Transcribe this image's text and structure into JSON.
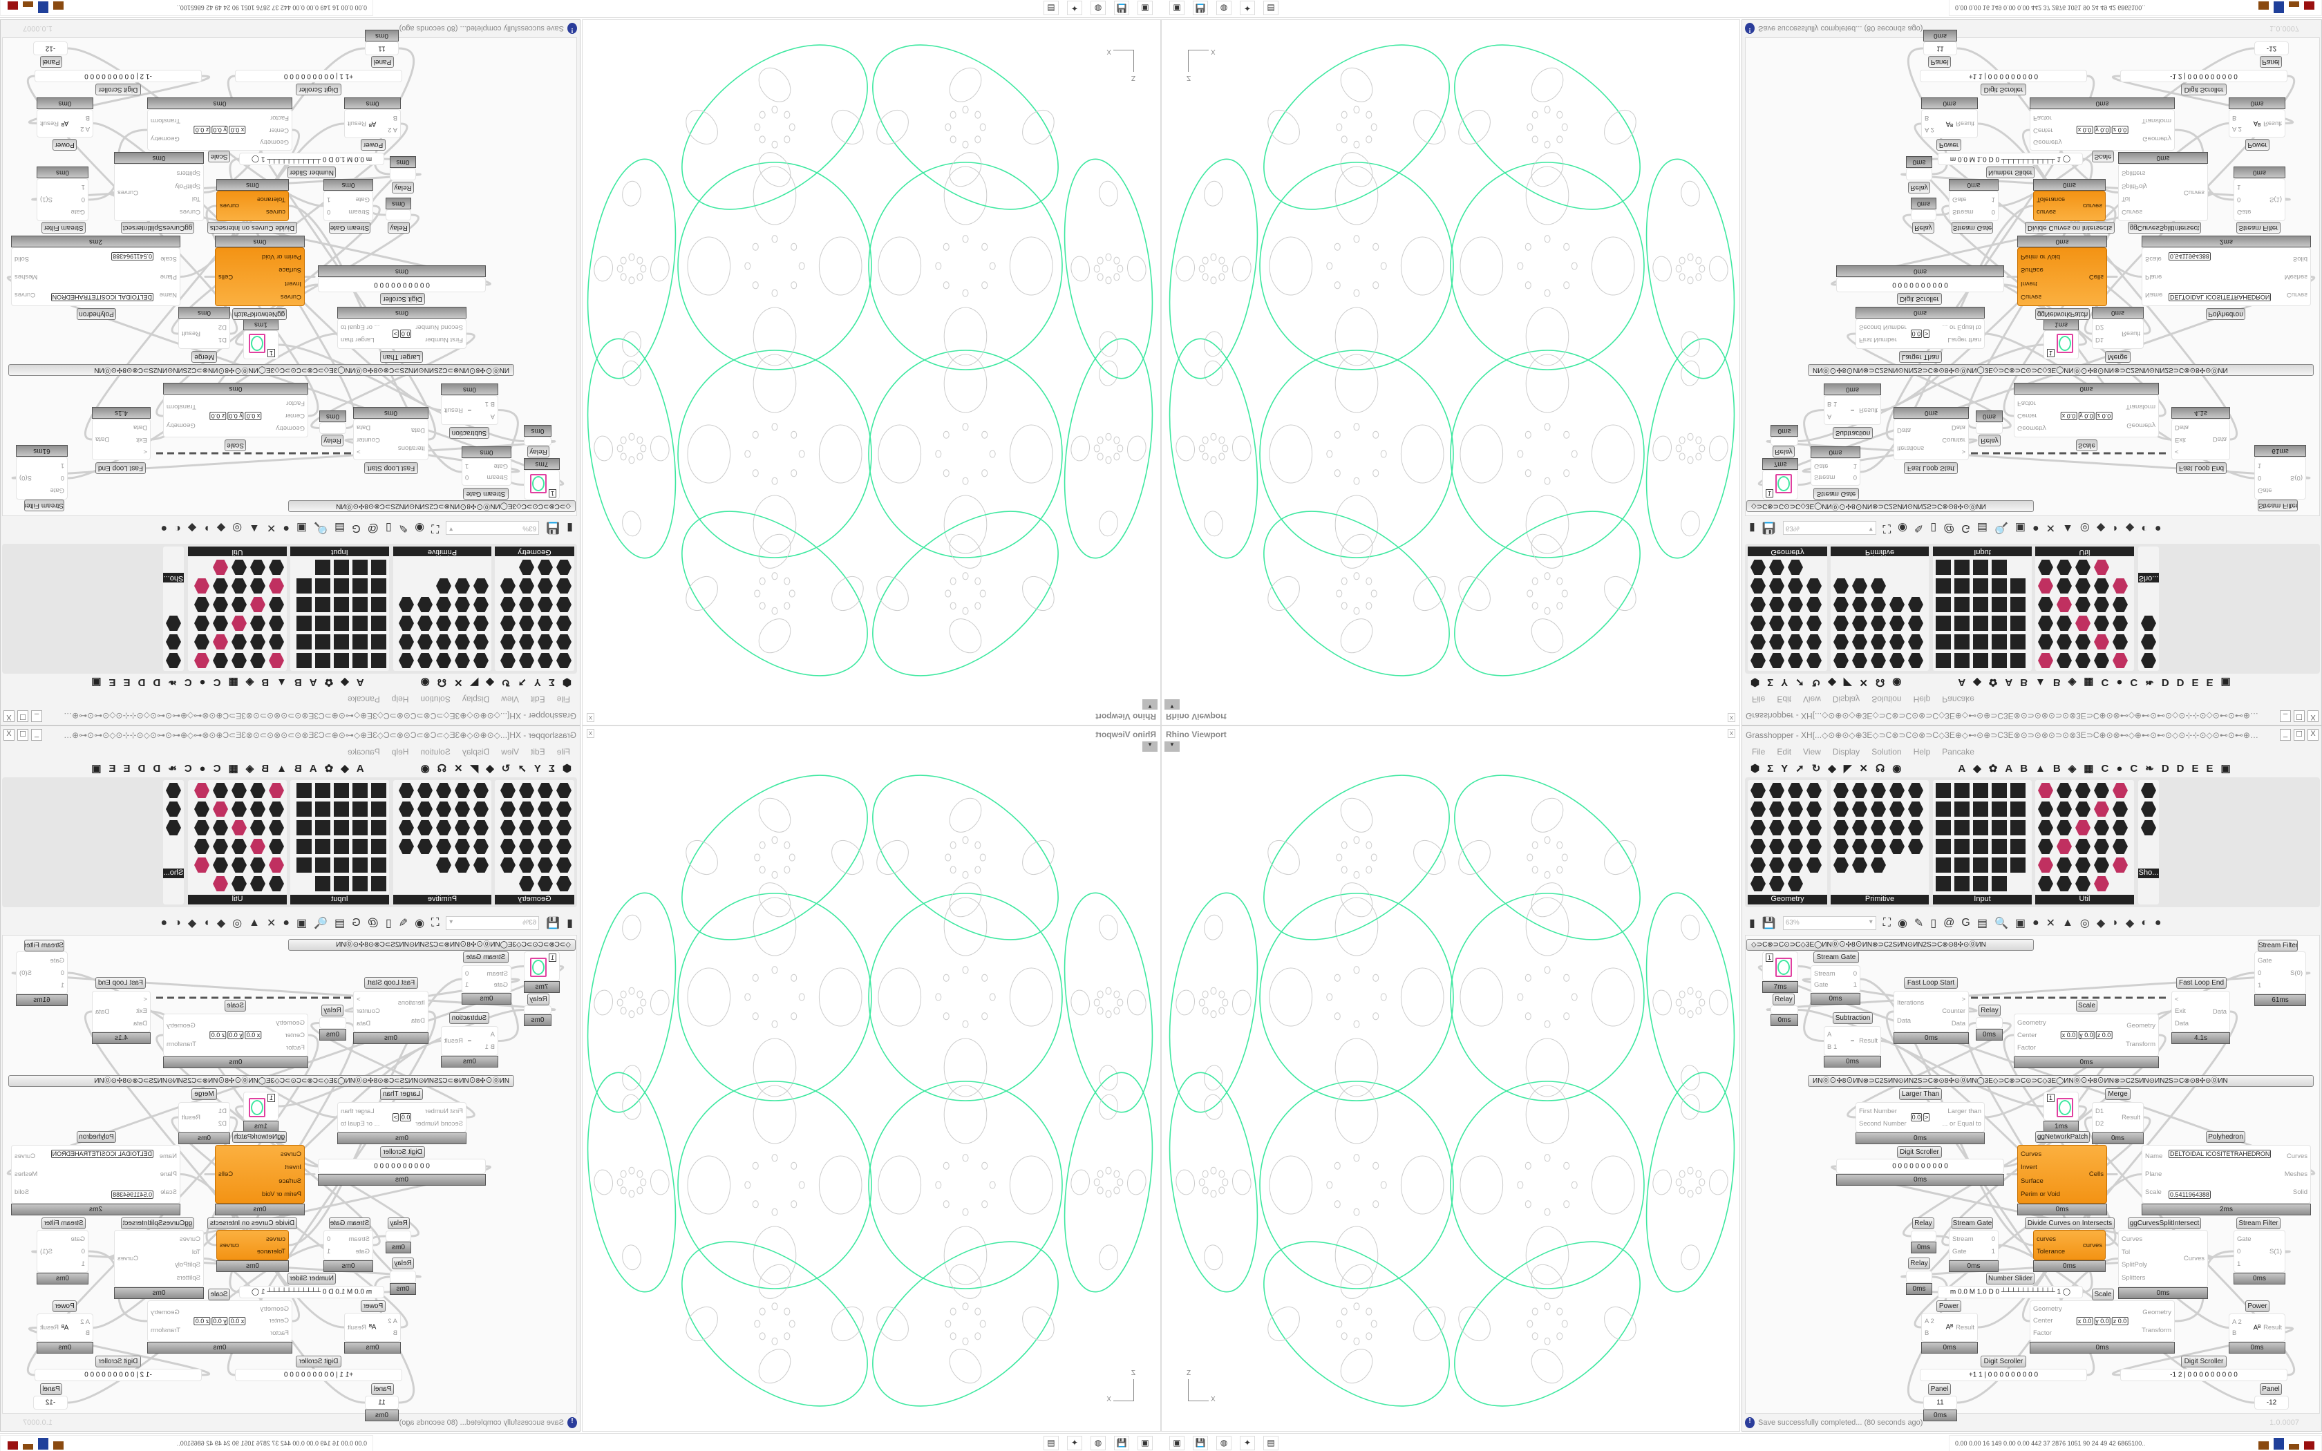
{
  "viewport": {
    "title": "Rhino Viewport",
    "close_label": "x",
    "axis_z": "Z",
    "axis_x": "X",
    "curve_color": "#3ee8a0"
  },
  "grasshopper": {
    "title": "Grasshopper - XH[...◇⊙⊕⊙◇⊕3E◇⊃C⊗⊃C⊙⊗⊃C◇3E⊕◇⊷⊙⊕⊃C3E⊗⊙⊃⊙⊗⊙⊃⊙⊗3E⊃C⊕⊙⊗⊷◇⊕⊷⊙⊷⊙◇⊙⊹⊹⊙◇⊙⊷⊙⊷⊕◇⊷⊙⊕⊃C3E⊗⊙⊃⊙⊗⊙...",
    "window_buttons": [
      "_",
      "☐",
      "X"
    ],
    "menu": [
      "File",
      "Edit",
      "View",
      "Display",
      "Solution",
      "Help",
      "Pancake"
    ],
    "tab_icons": [
      "⬢",
      "Σ",
      "Y",
      "➚",
      "↻",
      "◆",
      "◤",
      "✕",
      "☊",
      "◉"
    ],
    "tab_letters": [
      "A",
      "◆",
      "✿",
      "A",
      "B",
      "▲",
      "B",
      "◈",
      "▦",
      "C",
      "●",
      "C",
      "❧",
      "D",
      "D",
      "E",
      "E",
      "▣"
    ],
    "panels": [
      {
        "name": "Geometry",
        "icon_count": 23
      },
      {
        "name": "Primitive",
        "icon_count": 23
      },
      {
        "name": "Input",
        "icon_count": 29
      },
      {
        "name": "Util",
        "icon_count": 29
      },
      {
        "name": "Sho...",
        "icon_count": 3
      }
    ],
    "toolbar": {
      "zoom_value": "63%",
      "icons": [
        "new-file",
        "save",
        "zoom-extents",
        "preview-eye",
        "sketch-brush",
        "cluster",
        "chain",
        "gha",
        "document",
        "search",
        "package",
        "bulb",
        "wires",
        "bell",
        "ring",
        "gem",
        "teal-shape",
        "green-shape",
        "sphere-half",
        "blue-sphere"
      ]
    },
    "groups": [
      "◇⊃C⊗⊃C⊙⊃C◇3E◯ИN⓪⊙✣8⊙ИN⊗⊃C2SИN⊙ИN2S⊃C⊗⊙8✣⊙⓪ИN",
      "ИN⓪⊙✣8⊙ИN⊗⊃C2SИN⊙ИN2S⊃C⊗⊙8✣⊙⓪ИN◯3E◇⊃C⊗⊃C⊙⊃C◇3E◯ИN⓪⊙✣8⊙ИN⊗⊃C2SИN⊙ИN2S⊃C⊗⊙8✣⊙⓪ИN"
    ],
    "nodes": [
      {
        "kind": "swatch",
        "value": "1",
        "footer": "7ms"
      },
      {
        "label": "Relay",
        "footer": "0ms"
      },
      {
        "label": "Stream Gate",
        "inputs": [
          "Stream",
          "Gate"
        ],
        "outputs": [
          "0",
          "1"
        ],
        "footer": "0ms"
      },
      {
        "label": "Subtraction",
        "inputs": [
          "A",
          "B 1"
        ],
        "outputs": [
          "Result"
        ],
        "value": "−",
        "footer": "0ms"
      },
      {
        "label": "Fast Loop Start",
        "inputs": [
          "Iterations",
          "Data"
        ],
        "outputs": [
          ">",
          "Counter",
          "Data"
        ],
        "footer": "0ms"
      },
      {
        "label": "Relay",
        "footer": "0ms"
      },
      {
        "label": "Scale",
        "inputs": [
          "Geometry",
          "Center",
          "Factor"
        ],
        "outputs": [
          "Geometry",
          "Transform"
        ],
        "fields": [
          "x 0.0",
          "y 0.0",
          "z 0.0"
        ],
        "footer": "0ms"
      },
      {
        "label": "Fast Loop End",
        "inputs": [
          "<",
          "Exit",
          "Data"
        ],
        "outputs": [
          "Data"
        ],
        "footer": "4.1s"
      },
      {
        "label": "Stream Filter",
        "inputs": [
          "Gate",
          "0",
          "1"
        ],
        "outputs": [
          "S(0)"
        ],
        "footer": "61ms"
      },
      {
        "label": "Larger Than",
        "inputs": [
          "First Number",
          "Second Number"
        ],
        "outputs": [
          "Larger than",
          "... or Equal to"
        ],
        "fields": [
          "0.0",
          ">"
        ],
        "footer": "0ms"
      },
      {
        "kind": "swatch",
        "value": "1",
        "footer": "1ms"
      },
      {
        "label": "Merge",
        "inputs": [
          "D1",
          "D2"
        ],
        "outputs": [
          "Result"
        ],
        "footer": "0ms"
      },
      {
        "label": "ggNetworkPatch"
      },
      {
        "label": "Polyhedron",
        "inputs": [
          "Name",
          "Plane",
          "Scale"
        ],
        "outputs": [
          "Curves",
          "Meshes",
          "Solid"
        ],
        "fields": [
          "DELTOIDAL ICOSITETRAHEDRON",
          "0.5411964388"
        ],
        "footer": "2ms"
      },
      {
        "label": "Digit Scroller",
        "value": "0 0 0 0 0 0 0 0 0 0",
        "footer": "0ms"
      },
      {
        "kind": "orange",
        "inputs": [
          "Curves",
          "Invert",
          "Surface",
          "Perim or Void"
        ],
        "outputs": [
          "Cells"
        ],
        "footer": "0ms"
      },
      {
        "label": "Relay",
        "footer": "0ms"
      },
      {
        "label": "Stream Gate",
        "inputs": [
          "Stream",
          "Gate"
        ],
        "outputs": [
          "0",
          "1"
        ],
        "footer": "0ms"
      },
      {
        "label": "Divide Curves on Intersects",
        "kind": "orange",
        "inputs": [
          "curves",
          "Tolerance"
        ],
        "outputs": [
          "curves"
        ],
        "footer": "0ms"
      },
      {
        "label": "ggCurvesSplitIntersect",
        "inputs": [
          "Curves",
          "Tol",
          "SplitPoly",
          "Splitters"
        ],
        "outputs": [
          "Curves"
        ],
        "footer": "0ms"
      },
      {
        "label": "Stream Filter",
        "inputs": [
          "Gate",
          "0",
          "1"
        ],
        "outputs": [
          "S(1)"
        ],
        "footer": "0ms"
      },
      {
        "label": "Relay",
        "footer": "0ms"
      },
      {
        "label": "Number Slider",
        "value": "m 0.0  M 1.0  D 0   ┴┴┴┴┴┴┴┴┴┴┴  1 ◯"
      },
      {
        "label": "Scale"
      },
      {
        "label": "Power",
        "inputs": [
          "A 2",
          "B"
        ],
        "outputs": [
          "Result"
        ],
        "value": "Aᴮ",
        "footer": "0ms"
      },
      {
        "inputs": [
          "Geometry",
          "Center",
          "Factor"
        ],
        "outputs": [
          "Geometry",
          "Transform"
        ],
        "fields": [
          "x 0.0",
          "y 0.0",
          "z 0.0"
        ],
        "footer": "0ms"
      },
      {
        "label": "Power",
        "inputs": [
          "A 2",
          "B"
        ],
        "outputs": [
          "Result"
        ],
        "value": "Aᴮ",
        "footer": "0ms"
      },
      {
        "label": "Digit Scroller",
        "value": "+1 1 | 0 0 0 0 0 0 0 0 0"
      },
      {
        "label": "Digit Scroller",
        "value": "-1 2 | 0 0 0 0 0 0 0 0 0"
      },
      {
        "label": "Panel",
        "value": "11",
        "footer": "0ms"
      },
      {
        "label": "Panel",
        "value": "-12"
      }
    ],
    "status": {
      "message": "Save successfully completed... (80 seconds ago)",
      "version": "1.0.0007"
    }
  },
  "taskbar": {
    "apps": [
      "▣",
      "💾",
      "◍",
      "✦",
      "▤"
    ],
    "stats": "0.00 0.00  16  149  0.00 0.00  442  37  2876 1051  90  24  49  42  6865100..",
    "bar_colors": [
      "#8a4a10",
      "#1f3f9a",
      "#8a4a10",
      "#9a1010"
    ]
  }
}
